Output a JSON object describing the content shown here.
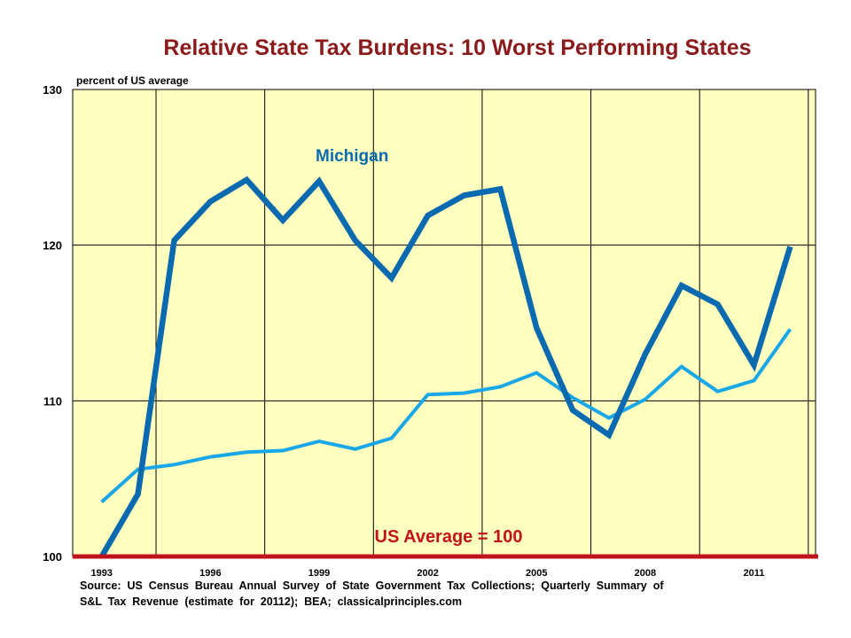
{
  "chart_data": {
    "type": "line",
    "title": "Relative State Tax Burdens: 10 Worst Performing States",
    "ylabel": "percent  of US average",
    "xlabel": "",
    "ylim": [
      100,
      130
    ],
    "yticks": [
      "100",
      "110",
      "120",
      "130"
    ],
    "xlim": [
      1992.2,
      2012.7
    ],
    "x_tick_values": [
      1993,
      1996,
      1999,
      2002,
      2005,
      2008,
      2011
    ],
    "x_tick_labels": [
      "1993",
      "1996",
      "1999",
      "2002",
      "2005",
      "2008",
      "2011"
    ],
    "grid": true,
    "x": [
      1993,
      1994,
      1995,
      1996,
      1997,
      1998,
      1999,
      2000,
      2001,
      2002,
      2003,
      2004,
      2005,
      2006,
      2007,
      2008,
      2009,
      2010,
      2011,
      2012
    ],
    "series": [
      {
        "name": "Michigan",
        "color": "#0a6ab0",
        "values": [
          100.0,
          104.0,
          120.3,
          122.8,
          124.2,
          121.6,
          124.1,
          120.3,
          117.9,
          121.9,
          123.2,
          123.6,
          114.7,
          109.4,
          107.8,
          113.0,
          117.4,
          116.2,
          112.3,
          119.9
        ]
      },
      {
        "values": [
          103.5,
          105.6,
          105.9,
          106.4,
          106.7,
          106.8,
          107.4,
          106.9,
          107.6,
          110.4,
          110.5,
          110.9,
          111.8,
          110.2,
          108.9,
          110.1,
          112.2,
          110.6,
          111.3,
          114.6
        ],
        "color": "#1aa7e8"
      }
    ],
    "reference_line": {
      "y": 100,
      "label": "US Average = 100",
      "color": "#c0141c"
    },
    "plot_background": "#ffffc0",
    "source": "Source:  US  Census  Bureau  Annual  Survey  of  State  Government  Tax  Collections;  Quarterly  Summary  of  S&L  Tax  Revenue  (estimate  for  20112);  BEA;  classicalprinciples.com"
  },
  "source_lines": [
    "Source:  US  Census  Bureau  Annual  Survey  of  State  Government  Tax  Collections;  Quarterly  Summary  of",
    "S&L  Tax  Revenue  (estimate  for  20112);  BEA;  classicalprinciples.com"
  ]
}
